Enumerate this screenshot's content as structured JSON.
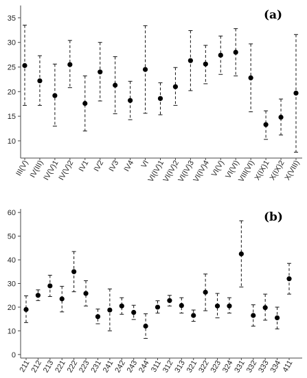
{
  "chart_data": [
    {
      "type": "scatter",
      "panel_label": "(a)",
      "categories": [
        "III(V)",
        "IV(III)",
        "IV(V)1",
        "IV(V)2",
        "IV1",
        "IV2",
        "IV3",
        "IV4",
        "VI",
        "VI(IV)1",
        "VI(IV)2",
        "VI(IV)3",
        "VI(IV)4",
        "VI(V)",
        "VI(VI)",
        "VIII(VI)",
        "X(IX)1",
        "X(IX)2",
        "X(VIII)"
      ],
      "series": [
        {
          "mean": [
            25.3,
            22.2,
            19.2,
            25.5,
            17.6,
            24.0,
            21.3,
            18.2,
            24.5,
            18.6,
            21.0,
            26.3,
            25.6,
            27.4,
            28.0,
            22.8,
            13.3,
            14.8,
            19.7
          ],
          "upper": [
            33.5,
            27.3,
            25.6,
            30.4,
            23.2,
            30.0,
            27.1,
            22.1,
            33.4,
            21.8,
            24.9,
            32.4,
            29.4,
            31.3,
            32.8,
            29.7,
            16.1,
            18.5,
            31.6
          ],
          "lower": [
            17.2,
            17.2,
            13.0,
            20.8,
            12.0,
            18.1,
            15.5,
            14.3,
            15.6,
            15.3,
            17.2,
            20.2,
            21.6,
            23.5,
            23.2,
            15.9,
            10.3,
            11.2,
            7.7
          ]
        }
      ],
      "yticks": [
        10,
        15,
        20,
        25,
        30,
        35
      ],
      "ylim": [
        6.5,
        37.5
      ],
      "xlabel": "",
      "ylabel": "",
      "grid": false,
      "legend": "none"
    },
    {
      "type": "scatter",
      "panel_label": "(b)",
      "categories": [
        "211",
        "212",
        "213",
        "221",
        "222",
        "223",
        "231",
        "241",
        "242",
        "243",
        "244",
        "311",
        "312",
        "313",
        "321",
        "322",
        "323",
        "324",
        "331",
        "332",
        "333",
        "334",
        "411"
      ],
      "series": [
        {
          "mean": [
            19.0,
            25.0,
            29.0,
            23.5,
            35.0,
            25.8,
            16.0,
            18.8,
            20.5,
            17.8,
            12.0,
            20.0,
            22.8,
            20.7,
            16.5,
            26.3,
            20.5,
            20.5,
            42.5,
            16.5,
            19.8,
            15.5,
            32.0
          ],
          "upper": [
            24.8,
            27.3,
            33.5,
            28.8,
            43.5,
            31.2,
            19.2,
            27.7,
            24.0,
            20.8,
            17.2,
            22.7,
            25.0,
            24.0,
            18.8,
            34.0,
            25.8,
            24.0,
            56.5,
            21.0,
            25.5,
            20.0,
            38.5
          ],
          "lower": [
            13.5,
            22.8,
            24.5,
            18.0,
            26.5,
            20.5,
            13.0,
            10.0,
            17.0,
            14.8,
            6.8,
            17.5,
            20.5,
            17.5,
            14.0,
            18.5,
            15.5,
            17.5,
            28.5,
            12.0,
            14.5,
            10.8,
            25.5
          ]
        }
      ],
      "yticks": [
        0,
        10,
        20,
        30,
        40,
        50,
        60
      ],
      "ylim": [
        -1.5,
        61.5
      ],
      "xlabel": "",
      "ylabel": "",
      "grid": false,
      "legend": "none"
    }
  ]
}
